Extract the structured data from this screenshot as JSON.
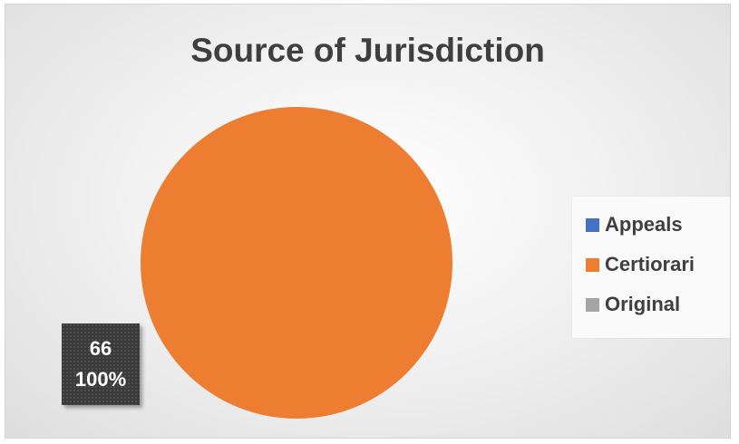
{
  "chart_data": {
    "type": "pie",
    "title": "Source of Jurisdiction",
    "categories": [
      "Appeals",
      "Certiorari",
      "Original"
    ],
    "values": [
      0,
      66,
      0
    ],
    "percentages": [
      "0%",
      "100%",
      "0%"
    ],
    "colors": [
      "#4472c4",
      "#ed7d31",
      "#a5a5a5"
    ],
    "legend_position": "right",
    "data_labels": [
      {
        "category": "Certiorari",
        "value": "66",
        "percent": "100%"
      }
    ]
  }
}
